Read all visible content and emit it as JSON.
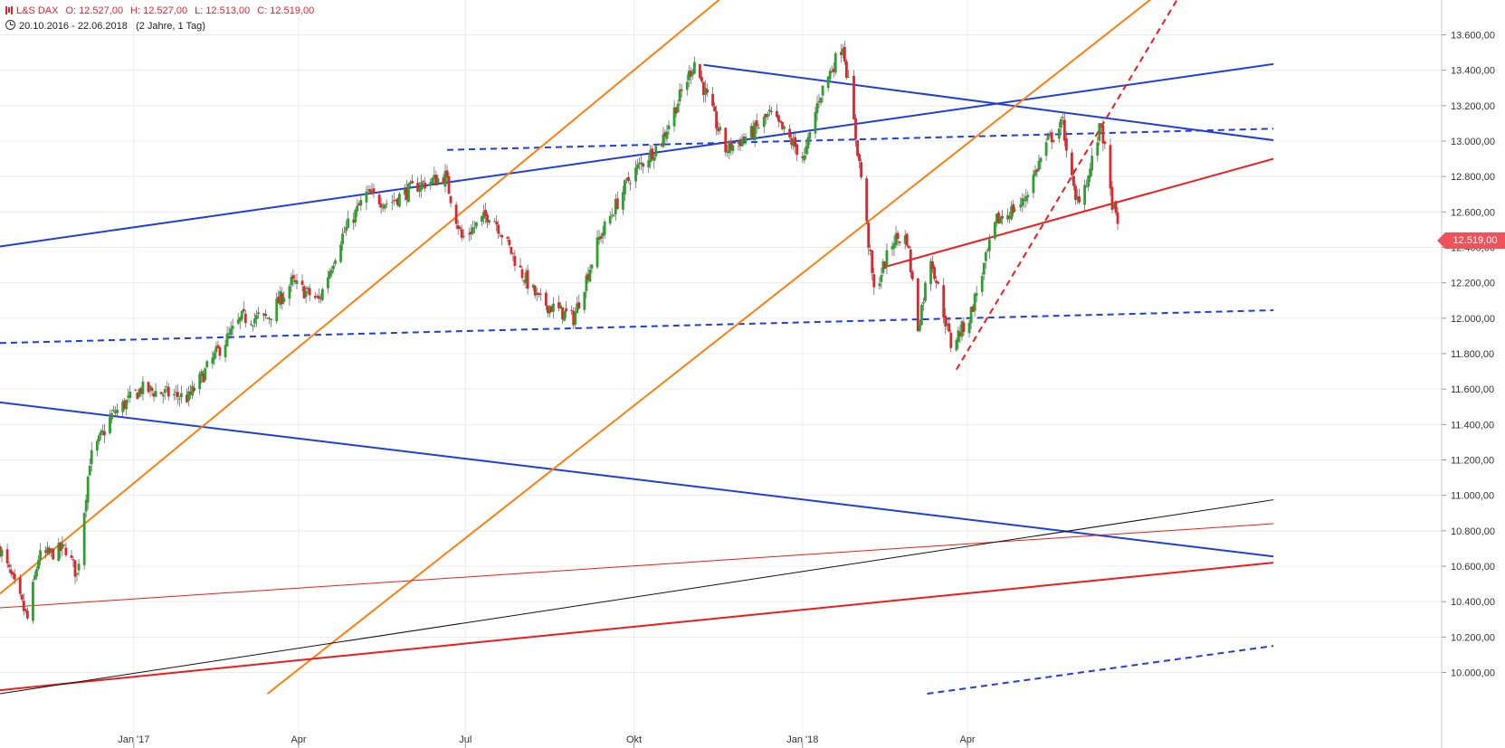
{
  "header": {
    "symbol": "L&S DAX",
    "open": "O: 12.527,00",
    "high": "H: 12.527,00",
    "low": "L: 12.513,00",
    "close": "C: 12.519,00",
    "range": "20.10.2016 - 22.06.2018",
    "period": "(2 Jahre, 1 Tag)",
    "clock_icon": "clock-icon",
    "logo_icon": "ls-logo-icon"
  },
  "colors": {
    "up": "#2ca02c",
    "down": "#e3242b",
    "blue": "#1f3fd8",
    "orange": "#ff7f0e",
    "red": "#ee1c1c",
    "grid": "#ececec",
    "axis": "#333333"
  },
  "chart_data": {
    "type": "candlestick",
    "title": "",
    "xlabel": "",
    "ylabel": "",
    "x_range": [
      "2016-10-20",
      "2018-06-22"
    ],
    "ylim": [
      9900,
      13900
    ],
    "last_price": 12519,
    "last_price_label": "12.519,00",
    "y_ticks": [
      10000,
      10200,
      10400,
      10600,
      10800,
      11000,
      11200,
      11400,
      11600,
      11800,
      12000,
      12200,
      12400,
      12600,
      12800,
      13000,
      13200,
      13400,
      13600
    ],
    "y_tick_labels": [
      "10.000,00",
      "10.200,00",
      "10.400,00",
      "10.600,00",
      "10.800,00",
      "11.000,00",
      "11.200,00",
      "11.400,00",
      "11.600,00",
      "11.800,00",
      "12.000,00",
      "12.200,00",
      "12.400,00",
      "12.600,00",
      "12.800,00",
      "13.000,00",
      "13.200,00",
      "13.400,00",
      "13.600,00"
    ],
    "x_ticks": [
      {
        "date": "2017-01-01",
        "label": "Jan '17"
      },
      {
        "date": "2017-04-01",
        "label": "Apr"
      },
      {
        "date": "2017-07-01",
        "label": "Jul"
      },
      {
        "date": "2017-10-01",
        "label": "Okt"
      },
      {
        "date": "2018-01-01",
        "label": "Jan '18"
      },
      {
        "date": "2018-04-01",
        "label": "Apr"
      }
    ],
    "anchors": [
      [
        "2016-10-20",
        10700
      ],
      [
        "2016-11-04",
        10300
      ],
      [
        "2016-11-10",
        10650
      ],
      [
        "2016-11-25",
        10700
      ],
      [
        "2016-12-01",
        10550
      ],
      [
        "2016-12-08",
        11200
      ],
      [
        "2016-12-20",
        11450
      ],
      [
        "2017-01-05",
        11600
      ],
      [
        "2017-01-31",
        11550
      ],
      [
        "2017-02-15",
        11800
      ],
      [
        "2017-03-01",
        12000
      ],
      [
        "2017-03-15",
        12000
      ],
      [
        "2017-03-28",
        12200
      ],
      [
        "2017-04-12",
        12100
      ],
      [
        "2017-04-24",
        12450
      ],
      [
        "2017-05-08",
        12700
      ],
      [
        "2017-05-20",
        12650
      ],
      [
        "2017-06-05",
        12750
      ],
      [
        "2017-06-20",
        12800
      ],
      [
        "2017-06-29",
        12450
      ],
      [
        "2017-07-15",
        12600
      ],
      [
        "2017-08-01",
        12250
      ],
      [
        "2017-08-10",
        12100
      ],
      [
        "2017-08-29",
        12000
      ],
      [
        "2017-09-12",
        12450
      ],
      [
        "2017-09-29",
        12800
      ],
      [
        "2017-10-16",
        13000
      ],
      [
        "2017-11-03",
        13450
      ],
      [
        "2017-11-08",
        13300
      ],
      [
        "2017-11-20",
        12950
      ],
      [
        "2017-12-05",
        13050
      ],
      [
        "2017-12-14",
        13150
      ],
      [
        "2017-12-22",
        13050
      ],
      [
        "2018-01-02",
        12900
      ],
      [
        "2018-01-10",
        13250
      ],
      [
        "2018-01-23",
        13550
      ],
      [
        "2018-02-02",
        12800
      ],
      [
        "2018-02-09",
        12150
      ],
      [
        "2018-02-20",
        12450
      ],
      [
        "2018-02-27",
        12450
      ],
      [
        "2018-03-05",
        11950
      ],
      [
        "2018-03-12",
        12350
      ],
      [
        "2018-03-23",
        11850
      ],
      [
        "2018-04-02",
        12000
      ],
      [
        "2018-04-17",
        12550
      ],
      [
        "2018-05-01",
        12650
      ],
      [
        "2018-05-15",
        13000
      ],
      [
        "2018-05-23",
        13100
      ],
      [
        "2018-05-30",
        12650
      ],
      [
        "2018-06-06",
        12800
      ],
      [
        "2018-06-13",
        13100
      ],
      [
        "2018-06-18",
        12700
      ],
      [
        "2018-06-22",
        12519
      ]
    ],
    "trendlines": [
      {
        "from": [
          "2016-10-20",
          12405
        ],
        "to": [
          "2018-09-15",
          13435
        ],
        "color": "#1f3fd8",
        "width": 2,
        "dash": false
      },
      {
        "from": [
          "2017-11-08",
          13430
        ],
        "to": [
          "2018-09-15",
          13005
        ],
        "color": "#1f3fd8",
        "width": 2,
        "dash": false
      },
      {
        "from": [
          "2016-10-20",
          11525
        ],
        "to": [
          "2018-09-15",
          10655
        ],
        "color": "#1f3fd8",
        "width": 2,
        "dash": false
      },
      {
        "from": [
          "2016-10-20",
          11860
        ],
        "to": [
          "2018-09-15",
          12045
        ],
        "color": "#1f3fd8",
        "width": 2,
        "dash": true
      },
      {
        "from": [
          "2017-06-21",
          12950
        ],
        "to": [
          "2018-09-15",
          13070
        ],
        "color": "#1f3fd8",
        "width": 2,
        "dash": true
      },
      {
        "from": [
          "2018-03-10",
          9880
        ],
        "to": [
          "2018-09-15",
          10150
        ],
        "color": "#1f3fd8",
        "width": 2,
        "dash": true
      },
      {
        "from": [
          "2016-10-20",
          10445
        ],
        "to": [
          "2017-12-02",
          13930
        ],
        "color": "#ff7f0e",
        "width": 2,
        "dash": false
      },
      {
        "from": [
          "2017-03-15",
          9880
        ],
        "to": [
          "2018-07-26",
          13930
        ],
        "color": "#ff7f0e",
        "width": 2,
        "dash": false
      },
      {
        "from": [
          "2018-02-15",
          12290
        ],
        "to": [
          "2018-09-15",
          12900
        ],
        "color": "#ee1c1c",
        "width": 2,
        "dash": false
      },
      {
        "from": [
          "2016-10-20",
          9900
        ],
        "to": [
          "2018-09-15",
          10620
        ],
        "color": "#ee1c1c",
        "width": 2,
        "dash": false
      },
      {
        "from": [
          "2016-10-20",
          10365
        ],
        "to": [
          "2018-09-15",
          10840
        ],
        "color": "#ee1c1c",
        "width": 1,
        "dash": false
      },
      {
        "from": [
          "2016-10-20",
          9880
        ],
        "to": [
          "2018-09-15",
          10975
        ],
        "color": "#111111",
        "width": 1,
        "dash": false
      },
      {
        "from": [
          "2018-03-26",
          11710
        ],
        "to": [
          "2018-08-01",
          13930
        ],
        "color": "#ee1c1c",
        "width": 2,
        "dash": true
      }
    ]
  }
}
